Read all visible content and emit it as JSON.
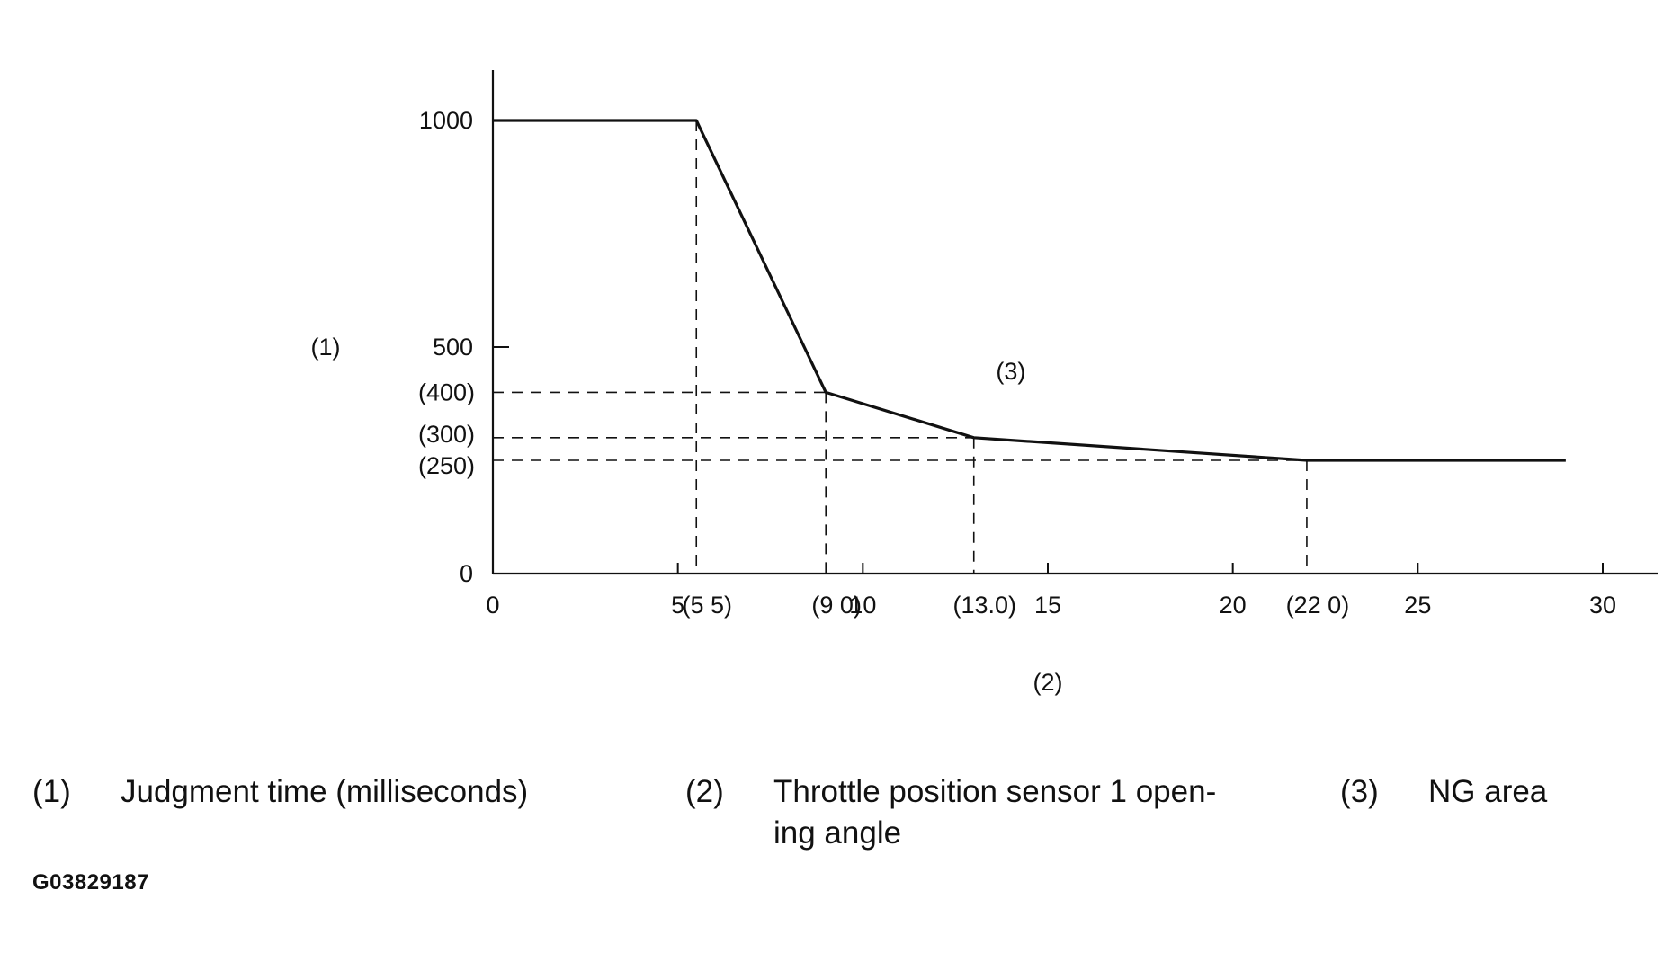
{
  "chart_data": {
    "type": "line",
    "series": [
      {
        "x": [
          0,
          5.5,
          9.0,
          13.0,
          22.0,
          29.0
        ],
        "y": [
          1000,
          1000,
          400,
          300,
          250,
          250
        ]
      }
    ],
    "xlim": [
      0,
      31
    ],
    "ylim": [
      0,
      1100
    ],
    "x_ticks": [
      {
        "value": 0,
        "label": "0"
      },
      {
        "value": 5,
        "label": "5"
      },
      {
        "value": 10,
        "label": "10"
      },
      {
        "value": 15,
        "label": "15"
      },
      {
        "value": 20,
        "label": "20"
      },
      {
        "value": 25,
        "label": "25"
      },
      {
        "value": 30,
        "label": "30"
      }
    ],
    "x_ref_labels": [
      {
        "value": 5.5,
        "label": "(5 5)"
      },
      {
        "value": 9.0,
        "label": "(9 0)"
      },
      {
        "value": 13.0,
        "label": "(13.0)"
      },
      {
        "value": 22.0,
        "label": "(22 0)"
      }
    ],
    "y_ticks": [
      {
        "value": 0,
        "label": "0"
      },
      {
        "value": 500,
        "label": "500"
      },
      {
        "value": 1000,
        "label": "1000"
      }
    ],
    "y_ref_labels": [
      {
        "value": 400,
        "label": "(400)"
      },
      {
        "value": 300,
        "label": "(300)"
      },
      {
        "value": 250,
        "label": "(250)"
      }
    ],
    "reference_points": [
      {
        "x": 5.5,
        "y": 1000
      },
      {
        "x": 9.0,
        "y": 400
      },
      {
        "x": 13.0,
        "y": 300
      },
      {
        "x": 22.0,
        "y": 250
      }
    ],
    "ylabel": "(1)",
    "xlabel": "(2)",
    "region_label": "(3)",
    "grid": false,
    "line_color": "#111111"
  },
  "legend": [
    {
      "num": "(1)",
      "text": "Judgment time (milliseconds)"
    },
    {
      "num": "(2)",
      "text": "Throttle position sensor 1 open-\ning angle"
    },
    {
      "num": "(3)",
      "text": "NG area"
    }
  ],
  "figure_id": "G03829187"
}
